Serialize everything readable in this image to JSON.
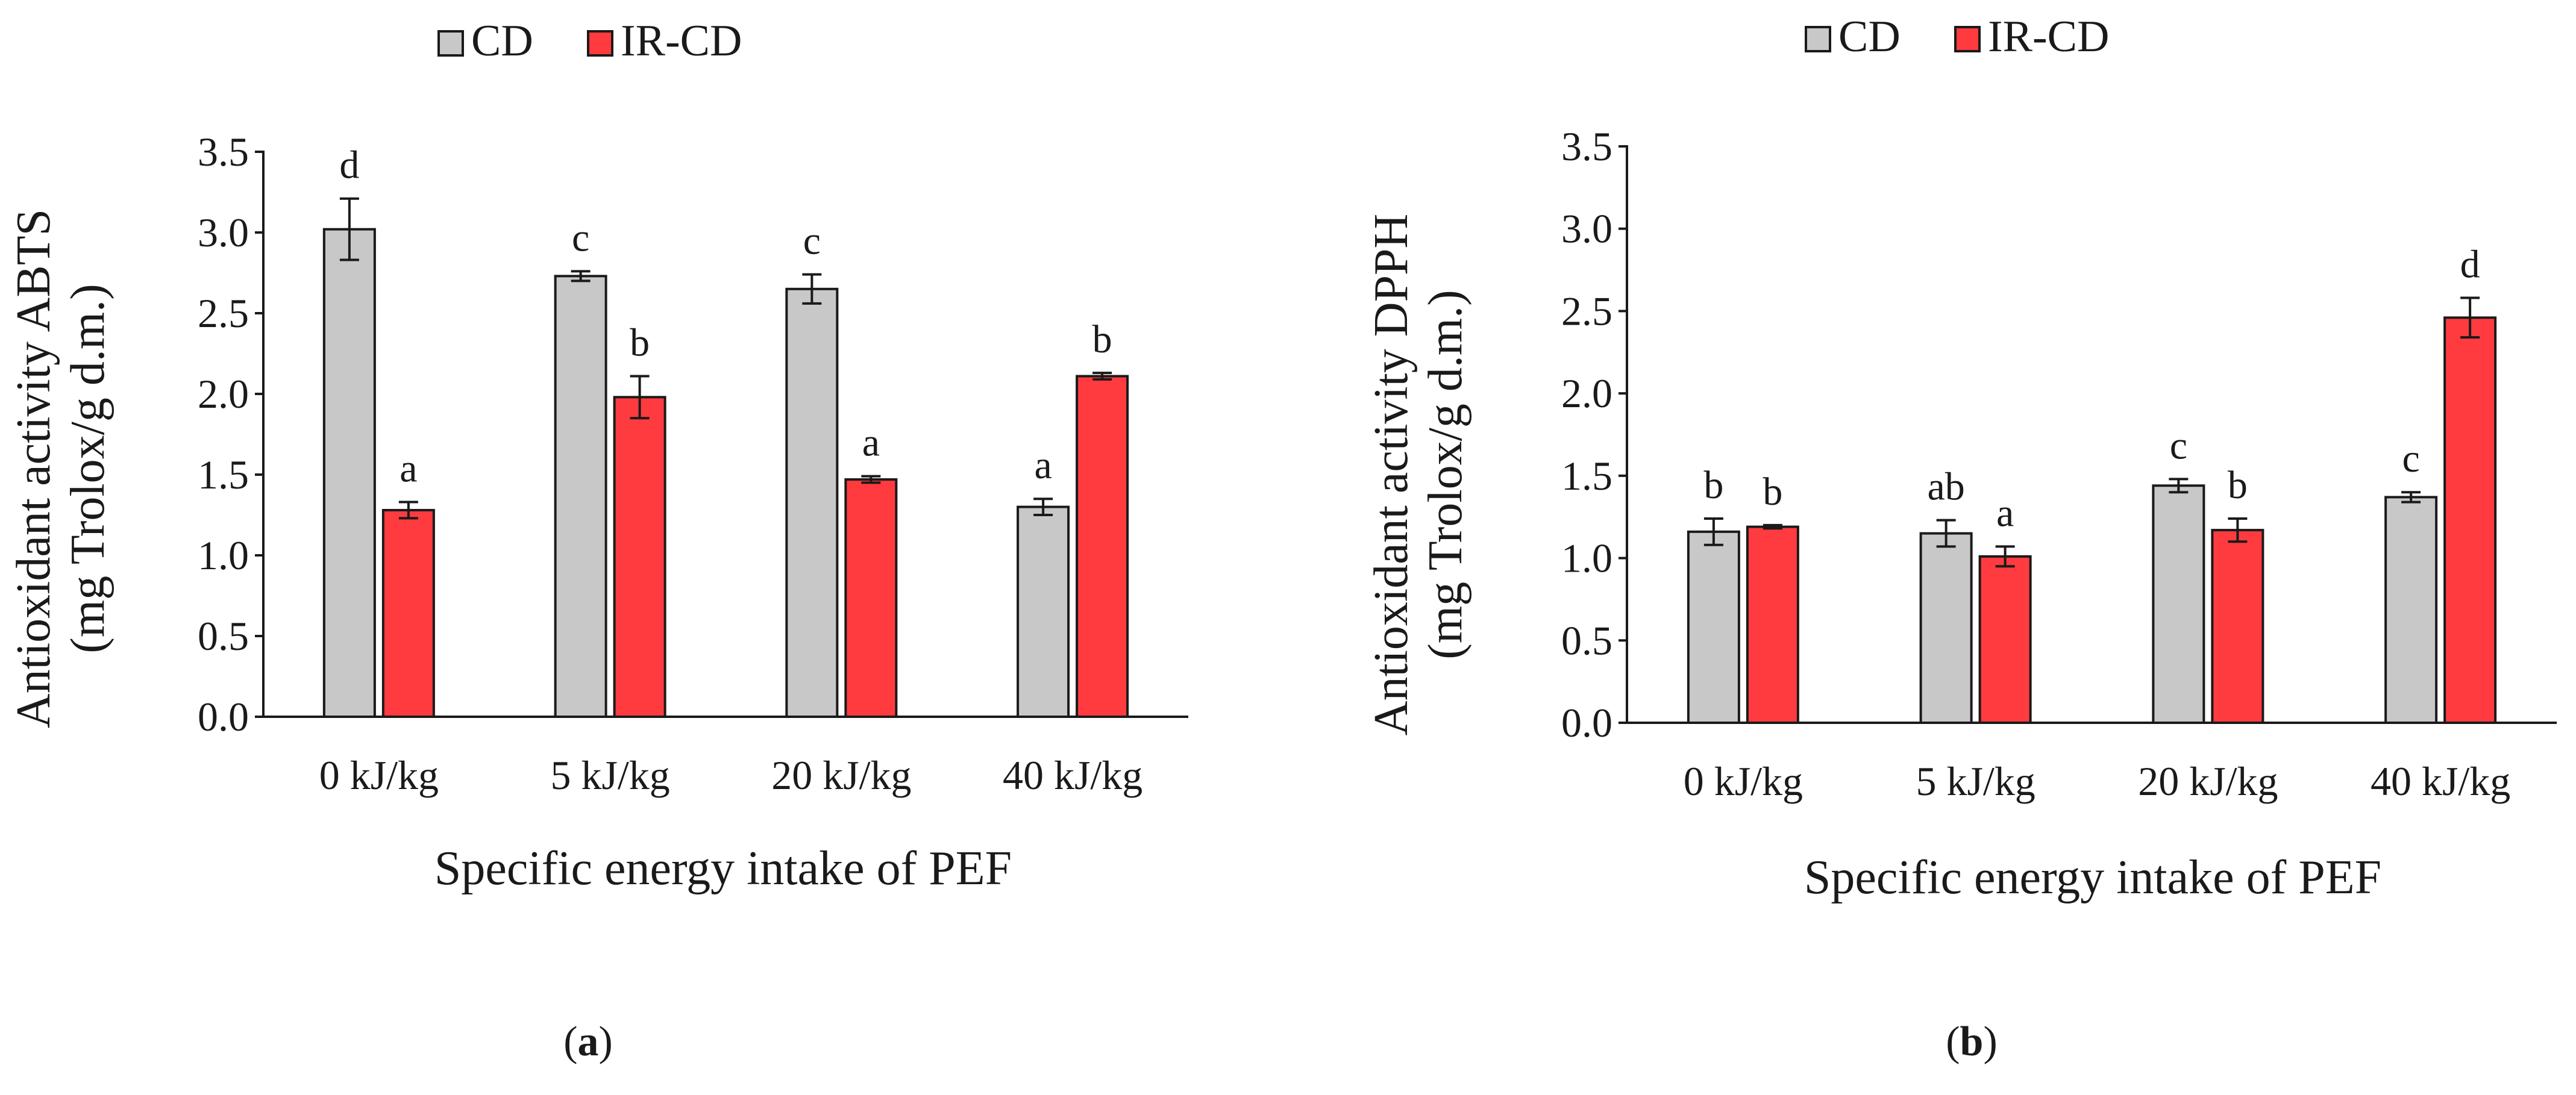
{
  "chart_data": [
    {
      "type": "bar",
      "panel_label": "a",
      "legend": [
        "CD",
        "IR-CD"
      ],
      "categories": [
        "0 kJ/kg",
        "5 kJ/kg",
        "20 kJ/kg",
        "40 kJ/kg"
      ],
      "xlabel": "Specific energy intake of PEF",
      "ylabel_lines": [
        "Antioxidant activity ABTS",
        "(mg Trolox/g d.m.)"
      ],
      "ylim": [
        0,
        3.5
      ],
      "yticks": [
        "0.0",
        "0.5",
        "1.0",
        "1.5",
        "2.0",
        "2.5",
        "3.0",
        "3.5"
      ],
      "series": [
        {
          "name": "CD",
          "color": "#c8c8c8",
          "values": [
            3.02,
            2.73,
            2.65,
            1.3
          ],
          "errors": [
            0.19,
            0.03,
            0.09,
            0.05
          ],
          "letters": [
            "d",
            "c",
            "c",
            "a"
          ]
        },
        {
          "name": "IR-CD",
          "color": "#ff3b3f",
          "values": [
            1.28,
            1.98,
            1.47,
            2.11
          ],
          "errors": [
            0.05,
            0.13,
            0.02,
            0.02
          ],
          "letters": [
            "a",
            "b",
            "a",
            "b"
          ]
        }
      ]
    },
    {
      "type": "bar",
      "panel_label": "b",
      "legend": [
        "CD",
        "IR-CD"
      ],
      "categories": [
        "0 kJ/kg",
        "5 kJ/kg",
        "20 kJ/kg",
        "40 kJ/kg"
      ],
      "xlabel": "Specific energy intake of PEF",
      "ylabel_lines": [
        "Antioxidant activity DPPH",
        "(mg Trolox/g d.m.)"
      ],
      "ylim": [
        0,
        3.5
      ],
      "yticks": [
        "0.0",
        "0.5",
        "1.0",
        "1.5",
        "2.0",
        "2.5",
        "3.0",
        "3.5"
      ],
      "series": [
        {
          "name": "CD",
          "color": "#c8c8c8",
          "values": [
            1.16,
            1.15,
            1.44,
            1.37
          ],
          "errors": [
            0.08,
            0.08,
            0.04,
            0.03
          ],
          "letters": [
            "b",
            "ab",
            "c",
            "c"
          ]
        },
        {
          "name": "IR-CD",
          "color": "#ff3b3f",
          "values": [
            1.19,
            1.01,
            1.17,
            2.46
          ],
          "errors": [
            0.01,
            0.06,
            0.07,
            0.12
          ],
          "letters": [
            "b",
            "a",
            "b",
            "d"
          ]
        }
      ]
    }
  ]
}
